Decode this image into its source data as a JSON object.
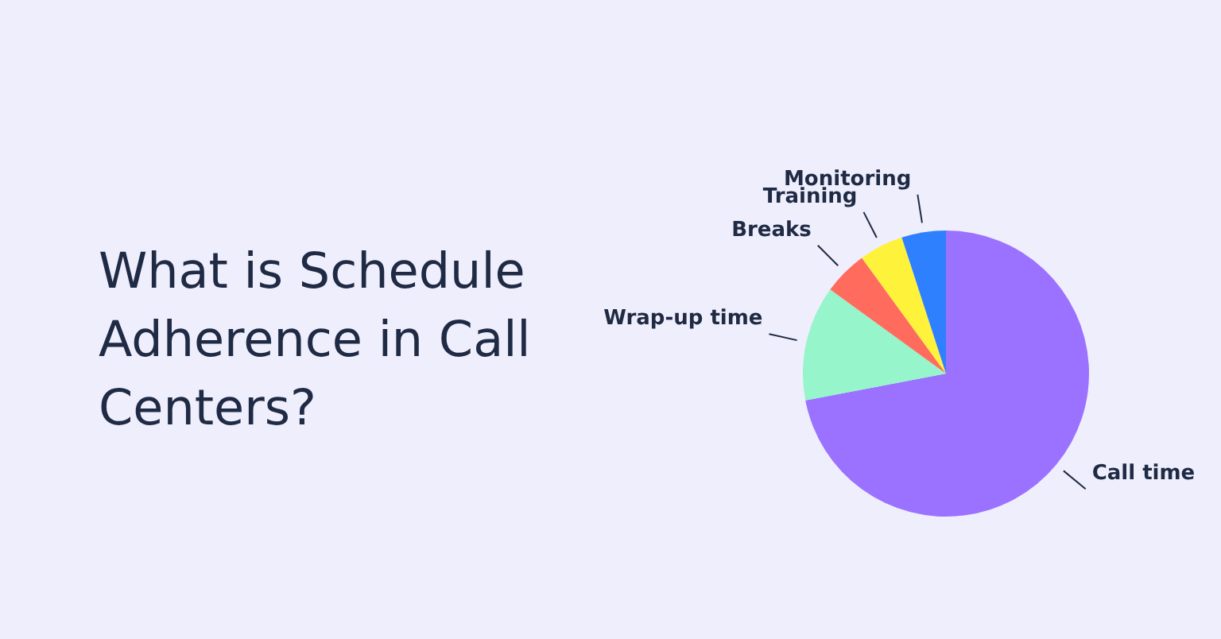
{
  "chart_data": {
    "type": "pie",
    "title": "What is Schedule Adherence in Call Centers?",
    "categories": [
      "Call time",
      "Wrap-up time",
      "Breaks",
      "Training",
      "Monitoring"
    ],
    "values": [
      72,
      13,
      5,
      5,
      5
    ],
    "colors": [
      "#9b72ff",
      "#96f5ca",
      "#ff6b5c",
      "#fff23a",
      "#2f80ff"
    ]
  }
}
